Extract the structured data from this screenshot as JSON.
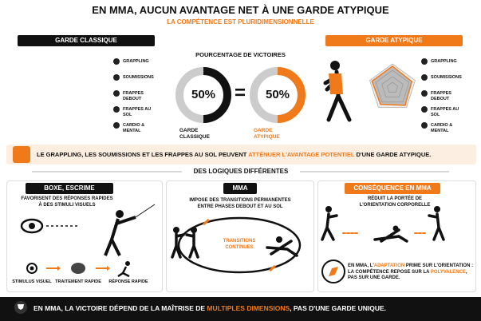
{
  "header": {
    "title": "EN MMA, AUCUN AVANTAGE NET À UNE GARDE ATYPIQUE",
    "subtitle": "LA COMPÉTENCE EST PLURIDIMENSIONNELLE"
  },
  "classic": {
    "label": "GARDE CLASSIQUE",
    "skills": [
      "GRAPPLING",
      "SOUMISSIONS",
      "FRAPPES DEBOUT",
      "FRAPPES AU SOL",
      "CARDIO & MENTAL"
    ]
  },
  "atypical": {
    "label": "GARDE ATYPIQUE",
    "skills": [
      "GRAPPLING",
      "SOUMISSIONS",
      "FRAPPES DEBOUT",
      "FRAPPES AU SOL",
      "CARDIO & MENTAL"
    ]
  },
  "victories": {
    "title": "POURCENTAGE DE VICTOIRES",
    "equals": "=",
    "donuts": [
      {
        "value": 50,
        "label": "50%",
        "name": "GARDE CLASSIQUE"
      },
      {
        "value": 50,
        "label": "50%",
        "name": "GARDE ATYPIQUE"
      }
    ]
  },
  "banner": {
    "parts": [
      "LE GRAPPLING, LES SOUMISSIONS ET LES FRAPPES AU SOL PEUVENT",
      "ATTÉNUER L'AVANTAGE POTENTIEL",
      "D'UNE GARDE ATYPIQUE."
    ]
  },
  "section": "DES LOGIQUES DIFFÉRENTES",
  "boxing": {
    "title": "BOXE, ESCRIME",
    "text": "FAVORISENT DES RÉPONSES RAPIDES À DES STIMULI VISUELS",
    "steps": [
      "STIMULUS VISUEL",
      "TRAITEMENT RAPIDE",
      "RÉPONSE RAPIDE"
    ]
  },
  "mma": {
    "title": "MMA",
    "text": "IMPOSE DES TRANSITIONS PERMANENTES ENTRE PHASES DEBOUT ET AU SOL",
    "cycle": "TRANSITIONS CONTINUES"
  },
  "consequence": {
    "title": "CONSÉQUENCE EN MMA",
    "text": "RÉDUIT LA PORTÉE DE L'ORIENTATION CORPORELLE",
    "note": [
      "EN MMA, L'",
      "ADAPTATION",
      "PRIME SUR L'ORIENTATION : LA COMPÉTENCE REPOSE SUR LA",
      "POLYVALENCE",
      ", PAS SUR UNE GARDE."
    ]
  },
  "footer": {
    "parts": [
      "EN MMA, LA VICTOIRE DÉPEND DE LA MAÎTRISE DE",
      "MULTIPLES DIMENSIONS",
      ", PAS D'UNE GARDE UNIQUE."
    ]
  }
}
